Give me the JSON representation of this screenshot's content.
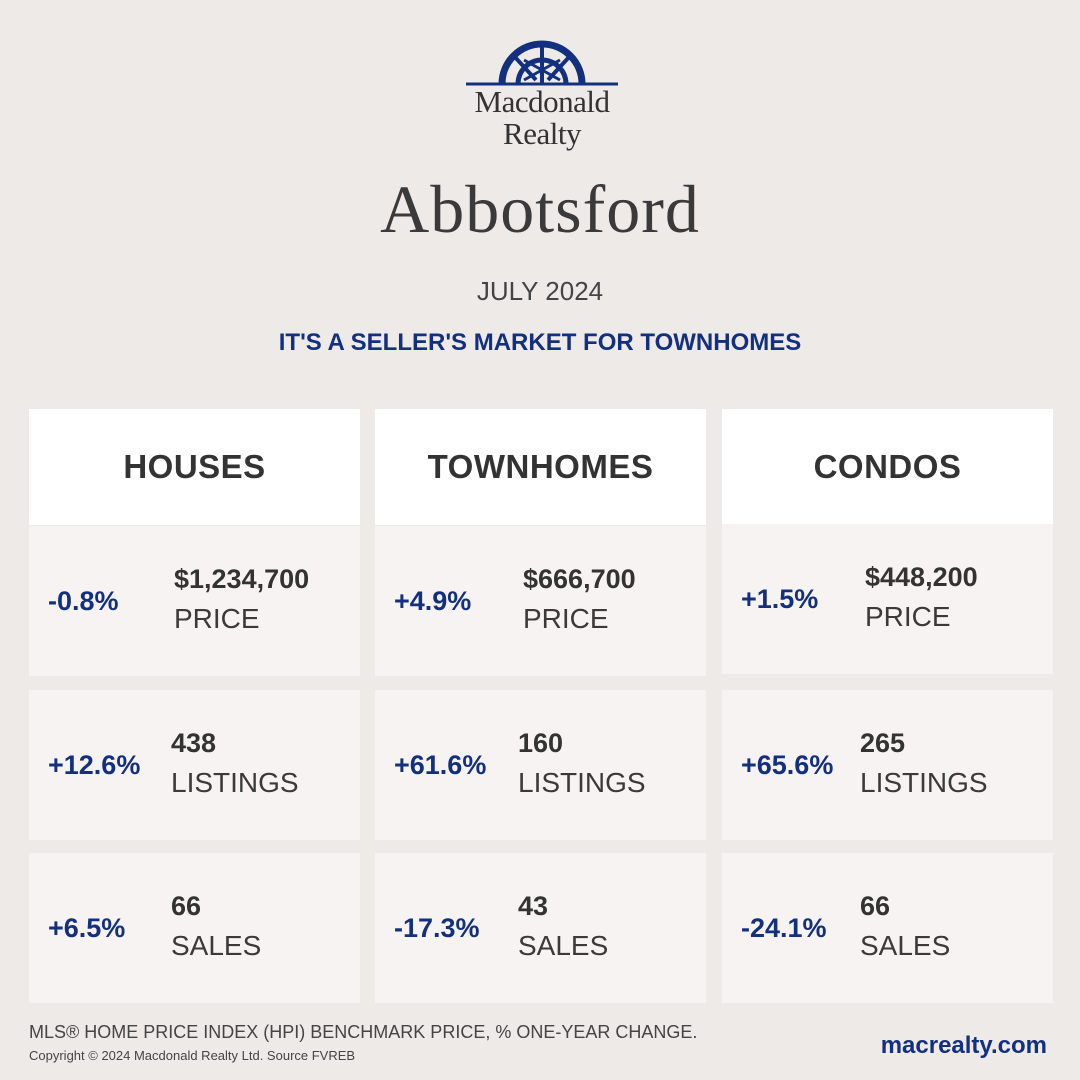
{
  "brand": {
    "name_line1": "Macdonald",
    "name_line2": "Realty",
    "color": "#13307f"
  },
  "city": "Abbotsford",
  "period": "JULY 2024",
  "tagline": "IT'S A SELLER'S MARKET FOR TOWNHOMES",
  "columns": [
    {
      "title": "HOUSES",
      "stats": [
        {
          "change": "-0.8%",
          "value": "$1,234,700",
          "label": "PRICE"
        },
        {
          "change": "+12.6%",
          "value": "438",
          "label": "LISTINGS"
        },
        {
          "change": "+6.5%",
          "value": "66",
          "label": "SALES"
        }
      ]
    },
    {
      "title": "TOWNHOMES",
      "stats": [
        {
          "change": "+4.9%",
          "value": "$666,700",
          "label": "PRICE"
        },
        {
          "change": "+61.6%",
          "value": "160",
          "label": "LISTINGS"
        },
        {
          "change": "-17.3%",
          "value": "43",
          "label": "SALES"
        }
      ]
    },
    {
      "title": "CONDOS",
      "stats": [
        {
          "change": "+1.5%",
          "value": "$448,200",
          "label": "PRICE"
        },
        {
          "change": "+65.6%",
          "value": "265",
          "label": "LISTINGS"
        },
        {
          "change": "-24.1%",
          "value": "66",
          "label": "SALES"
        }
      ]
    }
  ],
  "footer": {
    "note": "MLS® HOME PRICE INDEX (HPI) BENCHMARK PRICE, % ONE-YEAR CHANGE.",
    "copyright": "Copyright © 2024 Macdonald Realty Ltd. Source FVREB",
    "website": "macrealty.com"
  }
}
